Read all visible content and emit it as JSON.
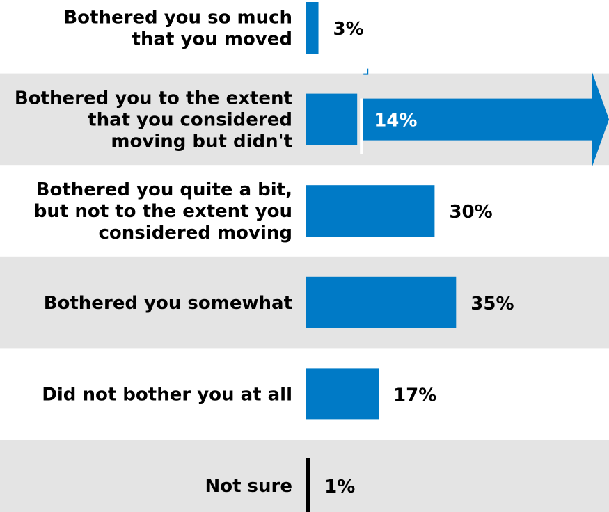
{
  "chart_data": {
    "type": "bar",
    "orientation": "horizontal",
    "categories": [
      [
        "Bothered you so much",
        "that you moved"
      ],
      [
        "Bothered you to the extent",
        "that you considered",
        "moving but didn't"
      ],
      [
        "Bothered you quite a bit,",
        "but not to the extent you",
        "considered moving"
      ],
      [
        "Bothered you somewhat"
      ],
      [
        "Did not bother you at all"
      ],
      [
        "Not sure"
      ]
    ],
    "values": [
      3,
      14,
      30,
      35,
      17,
      1
    ],
    "value_labels": [
      "3%",
      "14%",
      "30%",
      "35%",
      "17%",
      "1%"
    ],
    "highlight_index": 1,
    "xlim": [
      0,
      72
    ],
    "grid": false,
    "legend": "none",
    "colors": {
      "bar": "#007AC6",
      "bar_not_sure": "#000000",
      "band": "#E4E4E4",
      "text": "#000000",
      "highlight_text": "#FFFFFF"
    }
  }
}
